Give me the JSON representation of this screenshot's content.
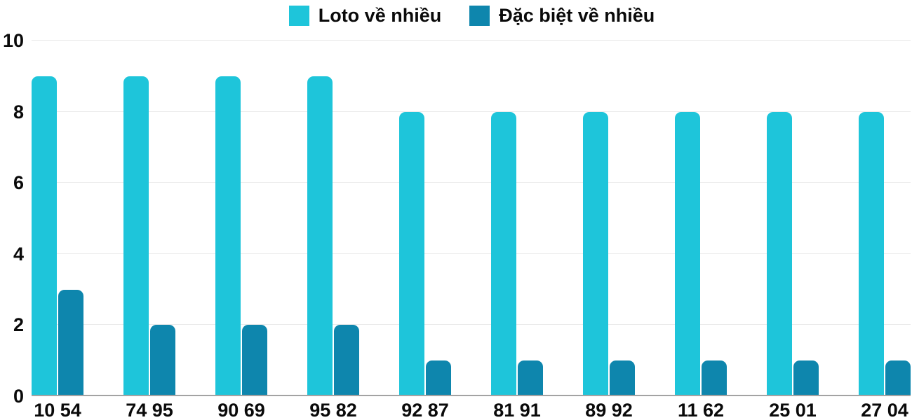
{
  "chart_data": {
    "type": "bar",
    "title": "",
    "xlabel": "",
    "ylabel": "",
    "categories": [
      "10 54",
      "74 95",
      "90 69",
      "95 82",
      "92 87",
      "81 91",
      "89 92",
      "11 62",
      "25 01",
      "27 04"
    ],
    "series": [
      {
        "name": "Loto về nhiều",
        "color": "#1EC5DA",
        "values": [
          9,
          9,
          9,
          9,
          8,
          8,
          8,
          8,
          8,
          8
        ]
      },
      {
        "name": "Đặc biệt về nhiều",
        "color": "#0E86AD",
        "values": [
          3,
          2,
          2,
          2,
          1,
          1,
          1,
          1,
          1,
          1
        ]
      }
    ],
    "ylim": [
      0,
      10
    ],
    "yticks": [
      0,
      2,
      4,
      6,
      8,
      10
    ],
    "grid": true,
    "legend_position": "top"
  },
  "colors": {
    "series1": "#1EC5DA",
    "series2": "#0E86AD",
    "gridline": "#e9e9e9",
    "axis_line": "#a3a3a3",
    "text": "#0a0a0a",
    "background": "#ffffff"
  }
}
